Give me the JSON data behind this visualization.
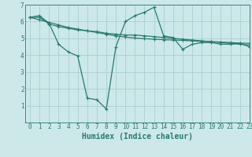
{
  "title": "",
  "xlabel": "Humidex (Indice chaleur)",
  "ylabel": "",
  "bg_color": "#cce8e8",
  "grid_color": "#aacfcf",
  "line_color": "#2a7a70",
  "xlim": [
    -0.5,
    23
  ],
  "ylim": [
    0,
    7
  ],
  "xticks": [
    0,
    1,
    2,
    3,
    4,
    5,
    6,
    7,
    8,
    9,
    10,
    11,
    12,
    13,
    14,
    15,
    16,
    17,
    18,
    19,
    20,
    21,
    22,
    23
  ],
  "yticks": [
    1,
    2,
    3,
    4,
    5,
    6,
    7
  ],
  "line1_x": [
    0,
    1,
    2,
    3,
    4,
    5,
    6,
    7,
    8,
    9,
    10,
    11,
    12,
    13,
    14,
    15,
    16,
    17,
    18,
    19,
    20,
    21,
    22,
    23
  ],
  "line1_y": [
    6.25,
    6.35,
    5.9,
    4.65,
    4.2,
    3.95,
    1.45,
    1.35,
    0.8,
    4.5,
    6.0,
    6.35,
    6.55,
    6.85,
    5.15,
    5.05,
    4.35,
    4.65,
    4.75,
    4.75,
    4.65,
    4.65,
    4.7,
    4.5
  ],
  "line2_x": [
    0,
    1,
    2,
    3,
    4,
    5,
    6,
    7,
    8,
    9,
    10,
    11,
    12,
    13,
    14,
    15,
    16,
    17,
    18,
    19,
    20,
    21,
    22,
    23
  ],
  "line2_y": [
    6.25,
    6.25,
    5.85,
    5.7,
    5.6,
    5.5,
    5.45,
    5.4,
    5.3,
    5.25,
    5.2,
    5.2,
    5.15,
    5.1,
    5.05,
    5.0,
    4.95,
    4.9,
    4.85,
    4.8,
    4.75,
    4.7,
    4.65,
    4.6
  ],
  "line3_x": [
    0,
    1,
    2,
    3,
    4,
    5,
    6,
    7,
    8,
    9,
    10,
    11,
    12,
    13,
    14,
    15,
    16,
    17,
    18,
    19,
    20,
    21,
    22,
    23
  ],
  "line3_y": [
    6.25,
    6.1,
    5.95,
    5.8,
    5.65,
    5.55,
    5.45,
    5.35,
    5.25,
    5.15,
    5.08,
    5.02,
    4.98,
    4.95,
    4.92,
    4.9,
    4.88,
    4.85,
    4.82,
    4.8,
    4.78,
    4.75,
    4.72,
    4.7
  ],
  "tick_fontsize": 5.5,
  "xlabel_fontsize": 7,
  "marker_size": 3,
  "linewidth": 0.9
}
